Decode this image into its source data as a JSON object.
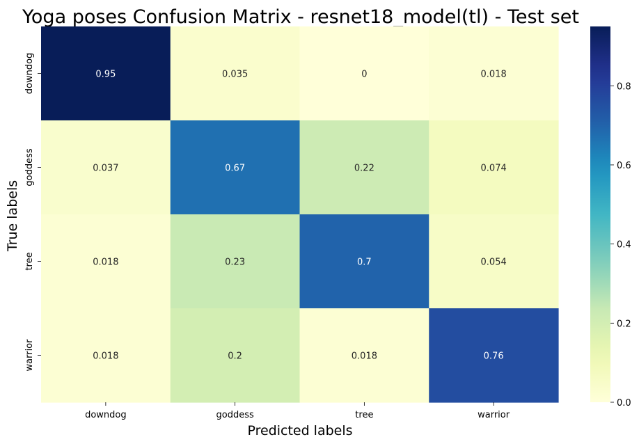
{
  "chart_data": {
    "type": "heatmap",
    "title": "Yoga poses Confusion Matrix - resnet18_model(tl) - Test set",
    "xlabel": "Predicted labels",
    "ylabel": "True labels",
    "x_categories": [
      "downdog",
      "goddess",
      "tree",
      "warrior"
    ],
    "y_categories": [
      "downdog",
      "goddess",
      "tree",
      "warrior"
    ],
    "values": [
      [
        0.95,
        0.035,
        0,
        0.018
      ],
      [
        0.037,
        0.67,
        0.22,
        0.074
      ],
      [
        0.018,
        0.23,
        0.7,
        0.054
      ],
      [
        0.018,
        0.2,
        0.018,
        0.76
      ]
    ],
    "value_labels": [
      [
        "0.95",
        "0.035",
        "0",
        "0.018"
      ],
      [
        "0.037",
        "0.67",
        "0.22",
        "0.074"
      ],
      [
        "0.018",
        "0.23",
        "0.7",
        "0.054"
      ],
      [
        "0.018",
        "0.2",
        "0.018",
        "0.76"
      ]
    ],
    "colormap": "YlGnBu",
    "colorbar": {
      "min": 0,
      "max": 0.95,
      "ticks": [
        0.0,
        0.2,
        0.4,
        0.6,
        0.8
      ],
      "tick_labels": [
        "0.0",
        "0.2",
        "0.4",
        "0.6",
        "0.8"
      ]
    },
    "grid": false,
    "legend": "colorbar-right"
  }
}
